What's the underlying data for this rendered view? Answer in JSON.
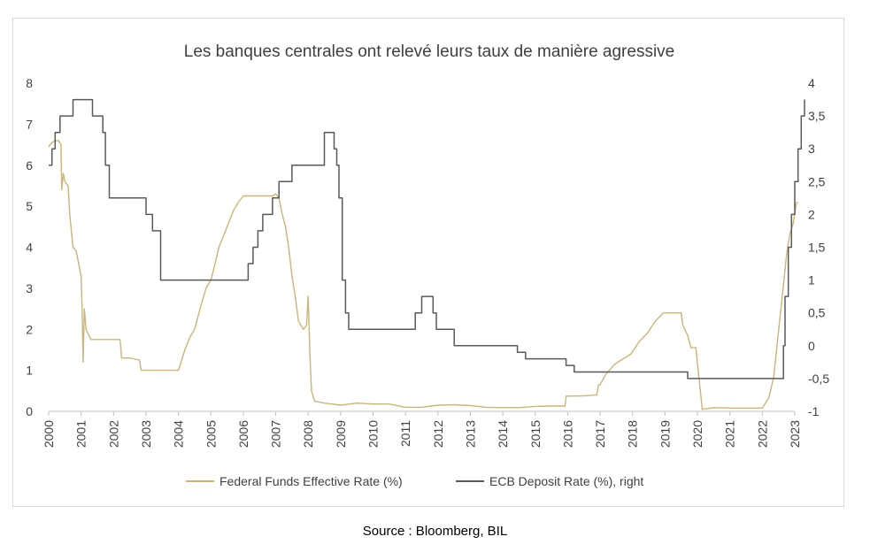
{
  "chart_data": {
    "type": "line",
    "title": "Les banques centrales ont relevé leurs taux de manière agressive",
    "x_ticks": [
      "2000",
      "2001",
      "2002",
      "2003",
      "2004",
      "2005",
      "2006",
      "2007",
      "2008",
      "2009",
      "2010",
      "2011",
      "2012",
      "2013",
      "2014",
      "2015",
      "2016",
      "2017",
      "2018",
      "2019",
      "2020",
      "2021",
      "2022",
      "2023"
    ],
    "xlim": [
      2000,
      2023
    ],
    "y_left": {
      "ticks": [
        "0",
        "1",
        "2",
        "3",
        "4",
        "5",
        "6",
        "7",
        "8"
      ],
      "lim": [
        0,
        8
      ]
    },
    "y_right": {
      "ticks": [
        "-1",
        "-0,5",
        "0",
        "0,5",
        "1",
        "1,5",
        "2",
        "2,5",
        "3",
        "3,5",
        "4"
      ],
      "lim": [
        -1,
        4
      ]
    },
    "legend_position": "bottom",
    "series": [
      {
        "name": "Federal Funds Effective Rate (%)",
        "axis": "left",
        "color": "#c9b57a",
        "points": [
          [
            2000.0,
            6.45
          ],
          [
            2000.1,
            6.55
          ],
          [
            2000.2,
            6.6
          ],
          [
            2000.3,
            6.6
          ],
          [
            2000.38,
            6.5
          ],
          [
            2000.4,
            5.4
          ],
          [
            2000.45,
            5.8
          ],
          [
            2000.5,
            5.6
          ],
          [
            2000.6,
            5.5
          ],
          [
            2000.65,
            4.8
          ],
          [
            2000.75,
            4.0
          ],
          [
            2000.85,
            3.9
          ],
          [
            2000.95,
            3.5
          ],
          [
            2001.0,
            3.3
          ],
          [
            2001.03,
            2.5
          ],
          [
            2001.06,
            1.2
          ],
          [
            2001.1,
            2.5
          ],
          [
            2001.15,
            2.0
          ],
          [
            2001.3,
            1.75
          ],
          [
            2001.6,
            1.75
          ],
          [
            2001.9,
            1.75
          ],
          [
            2002.2,
            1.75
          ],
          [
            2002.25,
            1.3
          ],
          [
            2002.5,
            1.3
          ],
          [
            2002.8,
            1.25
          ],
          [
            2002.85,
            1.0
          ],
          [
            2003.0,
            1.0
          ],
          [
            2003.5,
            1.0
          ],
          [
            2003.8,
            1.0
          ],
          [
            2004.0,
            1.0
          ],
          [
            2004.1,
            1.25
          ],
          [
            2004.2,
            1.5
          ],
          [
            2004.35,
            1.8
          ],
          [
            2004.5,
            2.0
          ],
          [
            2004.6,
            2.3
          ],
          [
            2004.7,
            2.6
          ],
          [
            2004.85,
            3.0
          ],
          [
            2005.0,
            3.2
          ],
          [
            2005.1,
            3.5
          ],
          [
            2005.25,
            4.0
          ],
          [
            2005.4,
            4.3
          ],
          [
            2005.55,
            4.6
          ],
          [
            2005.7,
            4.9
          ],
          [
            2005.85,
            5.1
          ],
          [
            2006.0,
            5.25
          ],
          [
            2006.5,
            5.25
          ],
          [
            2006.9,
            5.25
          ],
          [
            2007.0,
            5.3
          ],
          [
            2007.1,
            5.2
          ],
          [
            2007.2,
            4.8
          ],
          [
            2007.3,
            4.5
          ],
          [
            2007.4,
            4.0
          ],
          [
            2007.5,
            3.3
          ],
          [
            2007.6,
            2.8
          ],
          [
            2007.7,
            2.2
          ],
          [
            2007.85,
            2.0
          ],
          [
            2007.95,
            2.1
          ],
          [
            2008.0,
            2.8
          ],
          [
            2008.05,
            1.5
          ],
          [
            2008.1,
            0.5
          ],
          [
            2008.2,
            0.25
          ],
          [
            2008.5,
            0.2
          ],
          [
            2009.0,
            0.15
          ],
          [
            2009.5,
            0.2
          ],
          [
            2010.0,
            0.18
          ],
          [
            2010.5,
            0.18
          ],
          [
            2011.0,
            0.1
          ],
          [
            2011.5,
            0.1
          ],
          [
            2012.0,
            0.15
          ],
          [
            2012.5,
            0.16
          ],
          [
            2013.0,
            0.14
          ],
          [
            2013.5,
            0.1
          ],
          [
            2014.0,
            0.09
          ],
          [
            2014.5,
            0.09
          ],
          [
            2015.0,
            0.12
          ],
          [
            2015.5,
            0.13
          ],
          [
            2015.92,
            0.13
          ],
          [
            2015.95,
            0.37
          ],
          [
            2016.0,
            0.37
          ],
          [
            2016.5,
            0.38
          ],
          [
            2016.9,
            0.4
          ],
          [
            2016.95,
            0.65
          ],
          [
            2017.0,
            0.65
          ],
          [
            2017.17,
            0.9
          ],
          [
            2017.45,
            1.15
          ],
          [
            2017.95,
            1.4
          ],
          [
            2018.2,
            1.7
          ],
          [
            2018.45,
            1.9
          ],
          [
            2018.7,
            2.2
          ],
          [
            2018.95,
            2.4
          ],
          [
            2019.5,
            2.4
          ],
          [
            2019.55,
            2.1
          ],
          [
            2019.7,
            1.85
          ],
          [
            2019.8,
            1.55
          ],
          [
            2019.95,
            1.55
          ],
          [
            2020.15,
            0.05
          ],
          [
            2020.5,
            0.09
          ],
          [
            2021.0,
            0.08
          ],
          [
            2021.5,
            0.08
          ],
          [
            2022.0,
            0.08
          ],
          [
            2022.2,
            0.33
          ],
          [
            2022.35,
            0.83
          ],
          [
            2022.45,
            1.58
          ],
          [
            2022.55,
            2.33
          ],
          [
            2022.65,
            3.08
          ],
          [
            2022.75,
            3.83
          ],
          [
            2022.85,
            4.33
          ],
          [
            2022.95,
            4.58
          ],
          [
            2023.0,
            4.83
          ],
          [
            2023.05,
            5.08
          ],
          [
            2023.1,
            5.1
          ]
        ]
      },
      {
        "name": "ECB Deposit Rate (%), right",
        "axis": "right",
        "color": "#595959",
        "points": [
          [
            2000.0,
            2.75
          ],
          [
            2000.1,
            3.0
          ],
          [
            2000.2,
            3.25
          ],
          [
            2000.35,
            3.5
          ],
          [
            2000.75,
            3.75
          ],
          [
            2001.35,
            3.5
          ],
          [
            2001.67,
            3.25
          ],
          [
            2001.75,
            2.75
          ],
          [
            2001.87,
            2.25
          ],
          [
            2002.9,
            2.25
          ],
          [
            2003.0,
            2.0
          ],
          [
            2003.2,
            1.75
          ],
          [
            2003.45,
            1.0
          ],
          [
            2005.9,
            1.0
          ],
          [
            2006.15,
            1.25
          ],
          [
            2006.3,
            1.5
          ],
          [
            2006.45,
            1.75
          ],
          [
            2006.6,
            2.0
          ],
          [
            2006.9,
            2.25
          ],
          [
            2007.1,
            2.5
          ],
          [
            2007.5,
            2.75
          ],
          [
            2008.5,
            3.25
          ],
          [
            2008.8,
            3.0
          ],
          [
            2008.88,
            2.75
          ],
          [
            2008.95,
            2.25
          ],
          [
            2009.05,
            1.0
          ],
          [
            2009.15,
            0.5
          ],
          [
            2009.25,
            0.25
          ],
          [
            2011.3,
            0.5
          ],
          [
            2011.5,
            0.75
          ],
          [
            2011.85,
            0.5
          ],
          [
            2011.95,
            0.25
          ],
          [
            2012.5,
            0.0
          ],
          [
            2014.45,
            -0.1
          ],
          [
            2014.7,
            -0.2
          ],
          [
            2015.95,
            -0.3
          ],
          [
            2016.2,
            -0.4
          ],
          [
            2019.7,
            -0.5
          ],
          [
            2022.6,
            -0.5
          ],
          [
            2022.65,
            0.0
          ],
          [
            2022.7,
            0.75
          ],
          [
            2022.8,
            1.5
          ],
          [
            2022.9,
            2.0
          ],
          [
            2023.0,
            2.5
          ],
          [
            2023.1,
            3.0
          ],
          [
            2023.2,
            3.5
          ],
          [
            2023.3,
            3.75
          ]
        ]
      }
    ]
  },
  "footer": {
    "source": "Source : Bloomberg, BIL"
  }
}
